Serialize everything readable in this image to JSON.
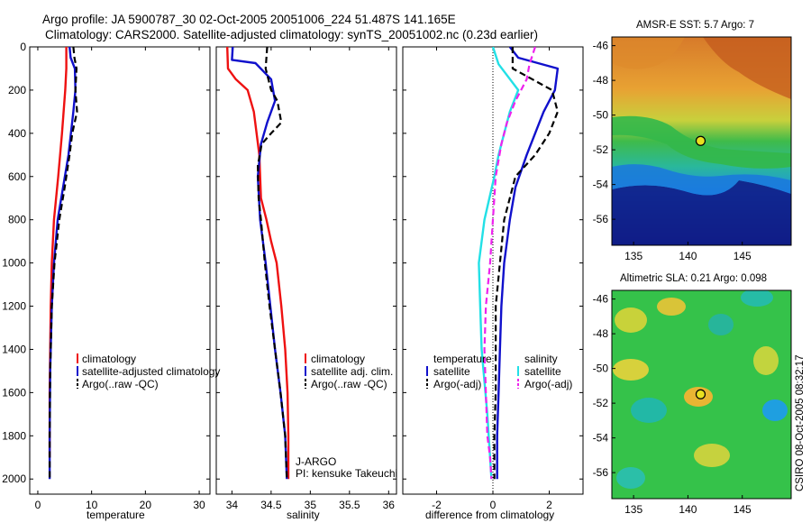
{
  "header": {
    "line1": "Argo profile: JA 5900787_30 02-Oct-2005 20051006_224 51.487S 141.165E",
    "line2": "Climatology: CARS2000. Satellite-adjusted climatology: synTS_20051002.nc (0.23d earlier)"
  },
  "credit": "CSIRO 08-Oct-2005 08:32:17",
  "colors": {
    "red": "#ee1111",
    "blue": "#1010cc",
    "black": "#000000",
    "cyan": "#22e0e6",
    "magenta": "#ee22ee"
  },
  "chart_data": [
    {
      "type": "line",
      "xlabel": "temperature",
      "ylabel": "",
      "xlim": [
        -1.5,
        32
      ],
      "ylim": [
        2070,
        0
      ],
      "xticks": [
        0,
        10,
        20,
        30
      ],
      "xtick_labels": [
        "0",
        "10",
        "20",
        "30"
      ],
      "yticks": [
        0,
        200,
        400,
        600,
        800,
        1000,
        1200,
        1400,
        1600,
        1800,
        2000
      ],
      "ytick_labels": [
        "0",
        "200",
        "400",
        "600",
        "800",
        "1000",
        "1200",
        "1400",
        "1600",
        "1800",
        "2000"
      ],
      "legend": {
        "position": "lower-right",
        "entries": [
          "climatology",
          "satellite-adjusted climatology",
          "Argo(..raw -QC)"
        ]
      },
      "series": [
        {
          "name": "climatology",
          "color": "red",
          "dash": "solid",
          "x": [
            5.3,
            5.3,
            5.1,
            4.5,
            3.8,
            3.0,
            2.6,
            2.4,
            2.3,
            2.2,
            2.2
          ],
          "y": [
            0,
            100,
            200,
            400,
            600,
            800,
            1000,
            1200,
            1400,
            1600,
            1900
          ]
        },
        {
          "name": "satellite-adjusted climatology",
          "color": "blue",
          "dash": "solid",
          "x": [
            5.9,
            6.1,
            6.9,
            7.0,
            6.6,
            5.7,
            4.7,
            3.7,
            3.0,
            2.6,
            2.3,
            2.2,
            2.2
          ],
          "y": [
            0,
            50,
            100,
            200,
            300,
            500,
            650,
            800,
            1000,
            1200,
            1500,
            1800,
            2000
          ]
        },
        {
          "name": "Argo(..raw -QC)",
          "color": "black",
          "dash": "dashed",
          "x": [
            6.6,
            6.8,
            7.2,
            7.0,
            7.3,
            6.4,
            5.9,
            5.0,
            4.0,
            3.1,
            2.6,
            2.3,
            2.2,
            2.2
          ],
          "y": [
            0,
            50,
            100,
            200,
            300,
            400,
            500,
            650,
            800,
            1000,
            1200,
            1500,
            1800,
            2000
          ]
        }
      ]
    },
    {
      "type": "line",
      "xlabel": "salinity",
      "ylabel": "",
      "xlim": [
        33.8,
        36.1
      ],
      "ylim": [
        2070,
        0
      ],
      "xticks": [
        34,
        34.5,
        35,
        35.5,
        36
      ],
      "xtick_labels": [
        "34",
        "34.5",
        "35",
        "35.5",
        "36"
      ],
      "legend": {
        "position": "lower-right",
        "entries": [
          "climatology",
          "satellite adj. clim.",
          "Argo(..raw -QC)"
        ]
      },
      "annotation": [
        "J-ARGO",
        "PI: kensuke Takeuchi"
      ],
      "series": [
        {
          "name": "climatology",
          "color": "red",
          "dash": "solid",
          "x": [
            33.94,
            33.95,
            34.05,
            34.2,
            34.28,
            34.35,
            34.37,
            34.44,
            34.5,
            34.57,
            34.63,
            34.68,
            34.71,
            34.72,
            34.72
          ],
          "y": [
            0,
            100,
            150,
            200,
            300,
            500,
            700,
            800,
            900,
            1000,
            1200,
            1400,
            1600,
            1800,
            2000
          ]
        },
        {
          "name": "satellite adj. clim.",
          "color": "blue",
          "dash": "solid",
          "x": [
            34.01,
            34.0,
            34.3,
            34.5,
            34.55,
            34.45,
            34.37,
            34.33,
            34.36,
            34.43,
            34.49,
            34.55,
            34.62,
            34.68,
            34.7
          ],
          "y": [
            0,
            60,
            75,
            150,
            250,
            350,
            450,
            600,
            800,
            1000,
            1200,
            1400,
            1600,
            1800,
            2000
          ]
        },
        {
          "name": "Argo(..raw -QC)",
          "color": "black",
          "dash": "dashed",
          "x": [
            34.45,
            34.43,
            34.5,
            34.58,
            34.63,
            34.5,
            34.38,
            34.33,
            34.34,
            34.37,
            34.42,
            34.48,
            34.55,
            34.62,
            34.68,
            34.7
          ],
          "y": [
            0,
            100,
            200,
            250,
            350,
            400,
            450,
            550,
            700,
            800,
            1000,
            1200,
            1400,
            1600,
            1800,
            2000
          ]
        }
      ]
    },
    {
      "type": "line",
      "xlabel": "difference from climatology",
      "ylabel": "",
      "xlim": [
        -3.2,
        3.2
      ],
      "ylim": [
        2070,
        0
      ],
      "xticks": [
        -2,
        0,
        2
      ],
      "xtick_labels": [
        "-2",
        "0",
        "2"
      ],
      "legend": {
        "position": "lower-center",
        "col_titles": [
          "temperature",
          "salinity"
        ],
        "entries": [
          "satellite",
          "Argo(-adj)",
          "satellite",
          "Argo(-adj)"
        ]
      },
      "series": [
        {
          "name": "temperature satellite",
          "color": "blue",
          "dash": "solid",
          "x": [
            0.6,
            0.9,
            2.3,
            2.2,
            1.8,
            1.5,
            1.2,
            0.8,
            0.6,
            0.4,
            0.3,
            0.25,
            0.2,
            0.15,
            0.15
          ],
          "y": [
            0,
            50,
            100,
            200,
            300,
            400,
            500,
            650,
            800,
            1000,
            1200,
            1400,
            1600,
            1800,
            2000
          ]
        },
        {
          "name": "temperature Argo(-adj)",
          "color": "black",
          "dash": "dashed",
          "x": [
            0.7,
            0.7,
            2.1,
            2.3,
            2.0,
            1.5,
            0.8,
            0.4,
            0.25,
            0.1,
            0.1,
            0.1,
            0.05,
            0.05
          ],
          "y": [
            0,
            100,
            200,
            300,
            400,
            500,
            600,
            800,
            1000,
            1200,
            1400,
            1600,
            1800,
            2000
          ]
        },
        {
          "name": "salinity satellite",
          "color": "cyan",
          "dash": "solid",
          "x": [
            0.0,
            0.2,
            0.9,
            0.6,
            0.4,
            0.2,
            0.05,
            -0.3,
            -0.5,
            -0.45,
            -0.4,
            -0.2,
            -0.05
          ],
          "y": [
            0,
            80,
            200,
            300,
            400,
            500,
            600,
            800,
            1000,
            1200,
            1400,
            1700,
            2000
          ]
        },
        {
          "name": "salinity Argo(-adj)",
          "color": "magenta",
          "dash": "dashed",
          "x": [
            1.5,
            1.3,
            1.2,
            0.8,
            0.5,
            0.3,
            0.1,
            0.0,
            -0.1,
            -0.25,
            -0.3,
            -0.25,
            -0.2,
            -0.1,
            -0.05
          ],
          "y": [
            0,
            80,
            150,
            250,
            350,
            450,
            600,
            800,
            1000,
            1200,
            1400,
            1600,
            1800,
            1900,
            2000
          ]
        }
      ]
    },
    {
      "type": "heatmap",
      "title": "AMSR-E SST: 5.7 Argo: 7",
      "xlim": [
        133,
        149.5
      ],
      "ylim": [
        -57.5,
        -45.5
      ],
      "xticks": [
        135,
        140,
        145
      ],
      "xtick_labels": [
        "135",
        "140",
        "145"
      ],
      "yticks": [
        -46,
        -48,
        -50,
        -52,
        -54,
        -56
      ],
      "ytick_labels": [
        "-46",
        "-48",
        "-50",
        "-52",
        "-54",
        "-56"
      ],
      "marker": {
        "lon": 141.165,
        "lat": -51.487
      }
    },
    {
      "type": "heatmap",
      "title": "Altimetric SLA: 0.21 Argo: 0.098",
      "xlim": [
        133,
        149.5
      ],
      "ylim": [
        -57.5,
        -45.5
      ],
      "xticks": [
        135,
        140,
        145
      ],
      "xtick_labels": [
        "135",
        "140",
        "145"
      ],
      "yticks": [
        -46,
        -48,
        -50,
        -52,
        -54,
        -56
      ],
      "ytick_labels": [
        "-46",
        "-48",
        "-50",
        "-52",
        "-54",
        "-56"
      ],
      "marker": {
        "lon": 141.165,
        "lat": -51.487
      }
    }
  ]
}
